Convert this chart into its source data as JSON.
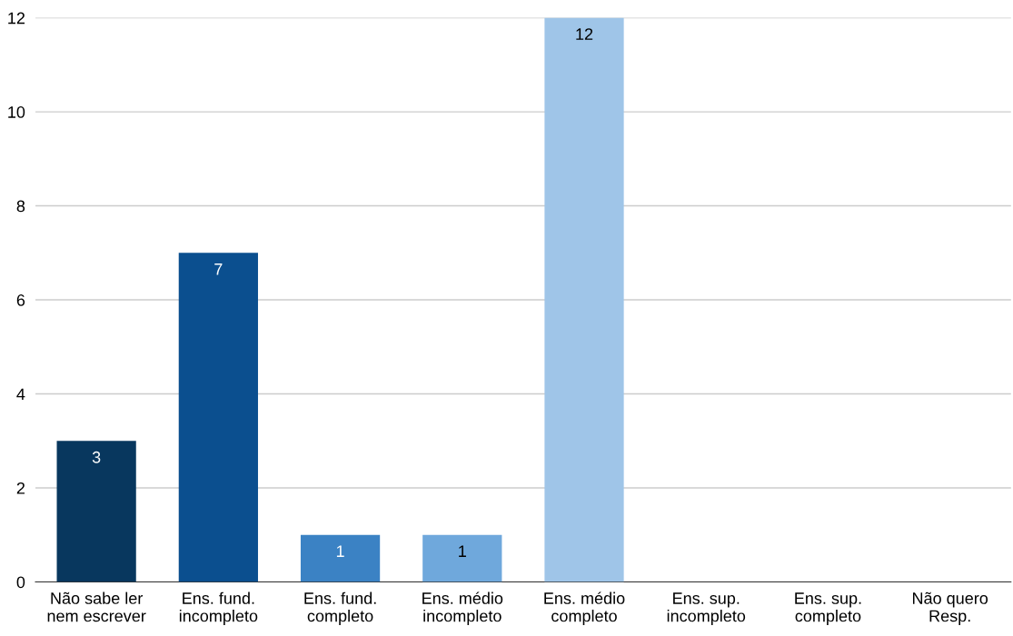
{
  "chart_data": {
    "type": "bar",
    "categories": [
      "Não sabe ler\nnem escrever",
      "Ens. fund.\nincompleto",
      "Ens. fund.\ncompleto",
      "Ens. médio\nincompleto",
      "Ens. médio\ncompleto",
      "Ens. sup.\nincompleto",
      "Ens. sup.\ncompleto",
      "Não quero\nResp."
    ],
    "values": [
      3,
      7,
      1,
      1,
      12,
      0,
      0,
      0
    ],
    "colors": [
      "#08375e",
      "#0b4f8f",
      "#3b82c4",
      "#6fa8dc",
      "#9fc5e8",
      "#9fc5e8",
      "#9fc5e8",
      "#9fc5e8"
    ],
    "value_labels": [
      "3",
      "7",
      "1",
      "1",
      "12",
      null,
      null,
      null
    ],
    "ylim": [
      0,
      12
    ],
    "yticks": [
      0,
      2,
      4,
      6,
      8,
      10,
      12
    ],
    "grid": "y"
  }
}
